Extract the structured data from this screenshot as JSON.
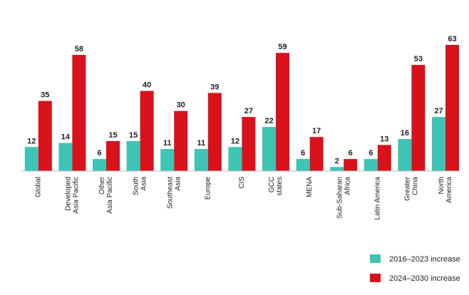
{
  "chart_data": {
    "type": "bar",
    "title": "",
    "xlabel": "",
    "ylabel": "",
    "ylim": [
      0,
      63
    ],
    "grid": false,
    "legend_position": "bottom-right",
    "categories": [
      [
        "Global"
      ],
      [
        "Developed",
        "Asia Pacific"
      ],
      [
        "Other",
        "Asia Pacific"
      ],
      [
        "South",
        "Asia"
      ],
      [
        "Southeast",
        "Asia"
      ],
      [
        "Europe"
      ],
      [
        "CIS"
      ],
      [
        "GCC",
        "states"
      ],
      [
        "MENA"
      ],
      [
        "Sub-Saharan",
        "Africa"
      ],
      [
        "Latin America"
      ],
      [
        "Greater",
        "China"
      ],
      [
        "North",
        "America"
      ]
    ],
    "series": [
      {
        "name": "2016–2023 increase",
        "color": "#3ec4b4",
        "values": [
          12,
          14,
          6,
          15,
          11,
          11,
          12,
          22,
          6,
          2,
          6,
          16,
          27
        ]
      },
      {
        "name": "2024–2030 increase",
        "color": "#d9111b",
        "values": [
          35,
          58,
          15,
          40,
          30,
          39,
          27,
          59,
          17,
          6,
          13,
          53,
          63
        ]
      }
    ]
  }
}
